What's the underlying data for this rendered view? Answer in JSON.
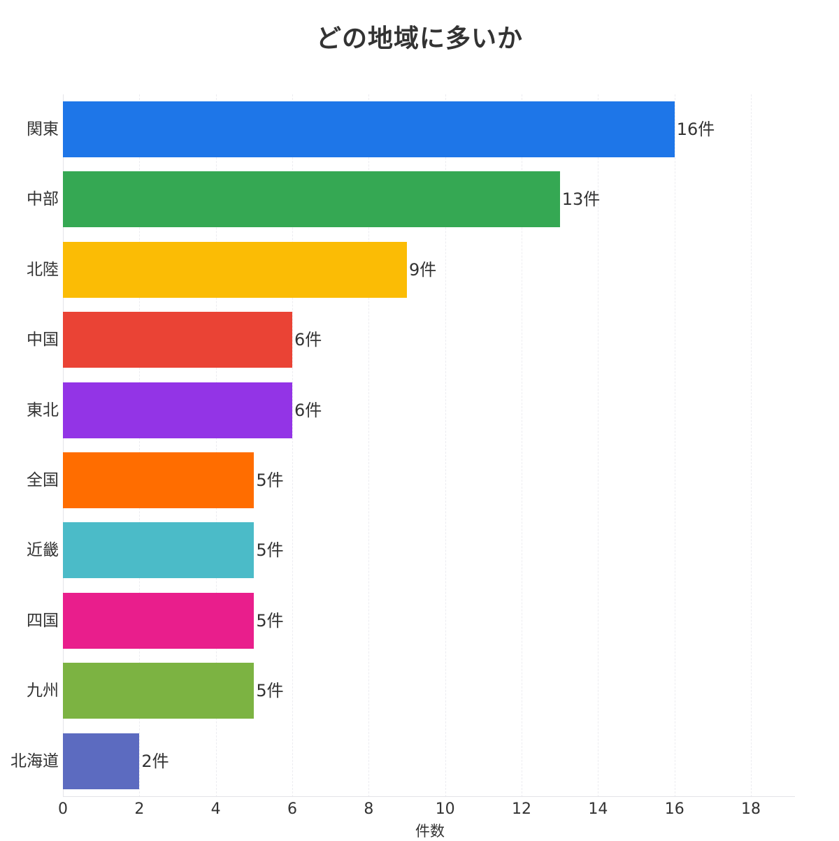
{
  "title": "どの地域に多いか",
  "chart_data": {
    "type": "bar",
    "orientation": "horizontal",
    "title": "どの地域に多いか",
    "xlabel": "件数",
    "ylabel": "",
    "xlim": [
      0,
      19
    ],
    "xticks": [
      0,
      2,
      4,
      6,
      8,
      10,
      12,
      14,
      16,
      18
    ],
    "grid": "vertical dashed",
    "legend": "none",
    "value_suffix": "件",
    "categories": [
      "関東",
      "中部",
      "北陸",
      "中国",
      "東北",
      "全国",
      "近畿",
      "四国",
      "九州",
      "北海道"
    ],
    "values": [
      16,
      13,
      9,
      6,
      6,
      5,
      5,
      5,
      5,
      2
    ],
    "value_labels": [
      "16件",
      "13件",
      "9件",
      "6件",
      "6件",
      "5件",
      "5件",
      "5件",
      "5件",
      "2件"
    ],
    "colors": [
      "#1e76e8",
      "#35a853",
      "#fbbc05",
      "#ea4335",
      "#9334e6",
      "#ff6d00",
      "#4bbbc8",
      "#e91e8c",
      "#7cb342",
      "#5c6bc0"
    ]
  }
}
